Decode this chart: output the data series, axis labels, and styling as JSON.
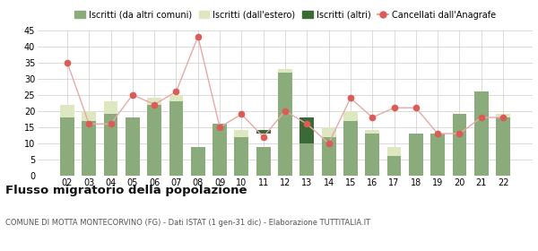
{
  "years": [
    "02",
    "03",
    "04",
    "05",
    "06",
    "07",
    "08",
    "09",
    "10",
    "11",
    "12",
    "13",
    "14",
    "15",
    "16",
    "17",
    "18",
    "19",
    "20",
    "21",
    "22"
  ],
  "iscritti_comuni": [
    18,
    17,
    19,
    18,
    22,
    23,
    9,
    16,
    12,
    9,
    32,
    10,
    12,
    17,
    13,
    6,
    13,
    13,
    19,
    26,
    18
  ],
  "iscritti_estero": [
    22,
    20,
    23,
    18,
    24,
    25,
    9,
    16,
    14,
    9,
    33,
    10,
    15,
    20,
    14,
    9,
    13,
    13,
    19,
    26,
    19
  ],
  "iscritti_altri_base": [
    0,
    0,
    0,
    0,
    0,
    0,
    0,
    0,
    0,
    13,
    0,
    10,
    0,
    0,
    0,
    0,
    0,
    0,
    0,
    0,
    0
  ],
  "iscritti_altri_top": [
    0,
    0,
    0,
    0,
    0,
    0,
    0,
    0,
    0,
    14,
    0,
    18,
    0,
    0,
    0,
    0,
    0,
    0,
    0,
    0,
    0
  ],
  "cancellati": [
    35,
    16,
    16,
    25,
    22,
    26,
    43,
    15,
    19,
    12,
    20,
    16,
    10,
    24,
    18,
    21,
    21,
    13,
    13,
    18,
    18
  ],
  "color_comuni": "#8aab7a",
  "color_estero": "#dde8c0",
  "color_altri": "#3a6b35",
  "color_cancellati": "#e05a55",
  "color_line": "#e8a8a8",
  "ylim": [
    0,
    45
  ],
  "yticks": [
    0,
    5,
    10,
    15,
    20,
    25,
    30,
    35,
    40,
    45
  ],
  "title": "Flusso migratorio della popolazione",
  "subtitle": "COMUNE DI MOTTA MONTECORVINO (FG) - Dati ISTAT (1 gen-31 dic) - Elaborazione TUTTITALIA.IT",
  "legend_labels": [
    "Iscritti (da altri comuni)",
    "Iscritti (dall'estero)",
    "Iscritti (altri)",
    "Cancellati dall'Anagrafe"
  ]
}
